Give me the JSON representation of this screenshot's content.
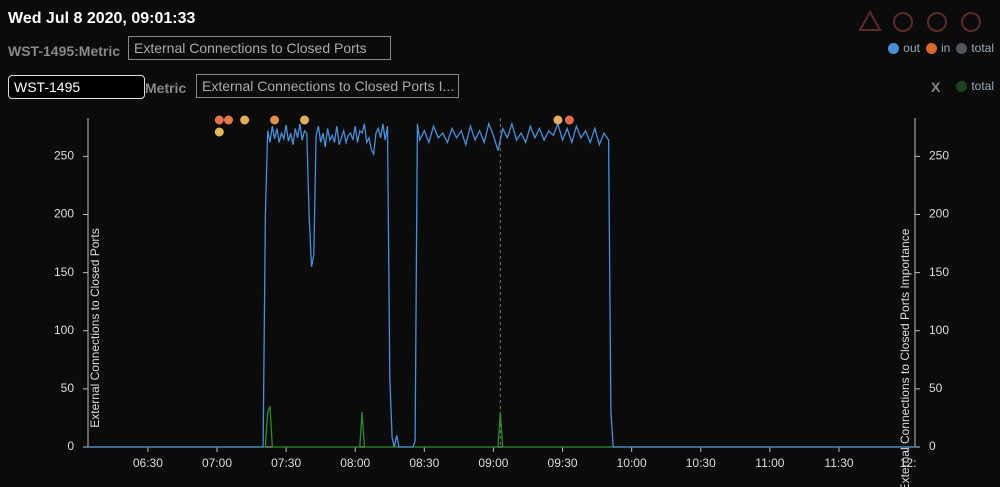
{
  "header": {
    "timestamp": "Wed Jul 8 2020, 09:01:33"
  },
  "row1": {
    "label": "WST-1495:Metric",
    "metric_input": "External Connections to Closed Ports",
    "legend": [
      {
        "name": "out",
        "color": "#4a8fd6"
      },
      {
        "name": "in",
        "color": "#d8692e"
      },
      {
        "name": "total",
        "color": "#555555"
      }
    ]
  },
  "row2": {
    "host_input": "WST-1495",
    "label": "Metric",
    "metric_input": "External Connections to Closed Ports I...",
    "close": "X",
    "legend": [
      {
        "name": "total",
        "color": "#1d4222"
      }
    ]
  },
  "chart_data": {
    "type": "line",
    "ylabel": "External Connections to Closed Ports",
    "y2label": "External Connections to Closed Ports Importance",
    "xlim": [
      "06:04",
      "12:03"
    ],
    "xticks": [
      "06:30",
      "07:00",
      "07:30",
      "08:00",
      "08:30",
      "09:00",
      "09:30",
      "10:00",
      "10:30",
      "11:00",
      "11:30",
      {
        "value": "12:00",
        "label": "12:"
      }
    ],
    "ylim": [
      0,
      283
    ],
    "yticks": [
      0,
      50,
      100,
      150,
      200,
      250
    ],
    "y2lim": [
      0,
      283
    ],
    "y2ticks": [
      0,
      50,
      100,
      150,
      200,
      250
    ],
    "cursor_x": "09:03",
    "series": [
      {
        "name": "out",
        "color": "#4a8fd6",
        "x": [
          "06:04",
          "07:20",
          "07:21",
          "07:22",
          "07:23",
          "07:24",
          "07:25",
          "07:26",
          "07:27",
          "07:28",
          "07:29",
          "07:30",
          "07:31",
          "07:32",
          "07:33",
          "07:34",
          "07:35",
          "07:36",
          "07:37",
          "07:38",
          "07:39",
          "07:40",
          "07:41",
          "07:42",
          "07:43",
          "07:44",
          "07:45",
          "07:46",
          "07:47",
          "07:48",
          "07:49",
          "07:50",
          "07:51",
          "07:52",
          "07:53",
          "07:54",
          "07:55",
          "07:56",
          "07:57",
          "07:58",
          "07:59",
          "08:00",
          "08:01",
          "08:02",
          "08:03",
          "08:04",
          "08:05",
          "08:06",
          "08:07",
          "08:08",
          "08:09",
          "08:10",
          "08:11",
          "08:12",
          "08:13",
          "08:14",
          "08:15",
          "08:16",
          "08:17",
          "08:18",
          "08:19",
          "08:25",
          "08:26",
          "08:27",
          "08:28",
          "08:30",
          "08:32",
          "08:34",
          "08:36",
          "08:38",
          "08:40",
          "08:42",
          "08:44",
          "08:46",
          "08:48",
          "08:50",
          "08:52",
          "08:54",
          "08:56",
          "08:58",
          "09:00",
          "09:02",
          "09:04",
          "09:06",
          "09:08",
          "09:10",
          "09:12",
          "09:14",
          "09:16",
          "09:18",
          "09:20",
          "09:22",
          "09:24",
          "09:26",
          "09:28",
          "09:30",
          "09:32",
          "09:34",
          "09:36",
          "09:38",
          "09:40",
          "09:42",
          "09:44",
          "09:46",
          "09:48",
          "09:50",
          "09:51",
          "09:52",
          "12:03"
        ],
        "values": [
          0,
          0,
          200,
          272,
          262,
          276,
          265,
          274,
          262,
          270,
          265,
          277,
          263,
          270,
          260,
          274,
          266,
          278,
          264,
          272,
          270,
          200,
          155,
          165,
          268,
          276,
          262,
          270,
          258,
          274,
          264,
          268,
          262,
          276,
          260,
          266,
          272,
          262,
          268,
          270,
          264,
          276,
          262,
          272,
          270,
          278,
          262,
          266,
          256,
          252,
          270,
          274,
          266,
          278,
          264,
          276,
          60,
          8,
          0,
          10,
          0,
          0,
          5,
          278,
          264,
          272,
          262,
          276,
          266,
          270,
          262,
          274,
          266,
          272,
          260,
          276,
          264,
          272,
          262,
          278,
          268,
          255,
          274,
          266,
          278,
          264,
          270,
          262,
          276,
          266,
          274,
          264,
          272,
          268,
          278,
          264,
          274,
          262,
          276,
          266,
          272,
          262,
          274,
          260,
          270,
          264,
          30,
          0,
          0
        ]
      },
      {
        "name": "total",
        "color": "#2e8b2e",
        "axis": "y2",
        "x": [
          "06:04",
          "07:21",
          "07:22",
          "07:23",
          "07:24",
          "08:02",
          "08:03",
          "08:04",
          "09:02",
          "09:03",
          "09:04",
          "12:03"
        ],
        "values": [
          0,
          0,
          30,
          35,
          0,
          0,
          30,
          0,
          0,
          30,
          0,
          0
        ]
      }
    ],
    "events": [
      {
        "x": "07:01",
        "color": "#e07050"
      },
      {
        "x": "07:05",
        "color": "#e07a48"
      },
      {
        "x": "07:12",
        "color": "#e0b060"
      },
      {
        "x": "07:25",
        "color": "#e09050"
      },
      {
        "x": "07:38",
        "color": "#e0b060"
      },
      {
        "x": "09:28",
        "color": "#e0b060"
      },
      {
        "x": "09:33",
        "color": "#e06a50"
      },
      {
        "x": "07:01",
        "color": "#e0b860"
      }
    ]
  }
}
